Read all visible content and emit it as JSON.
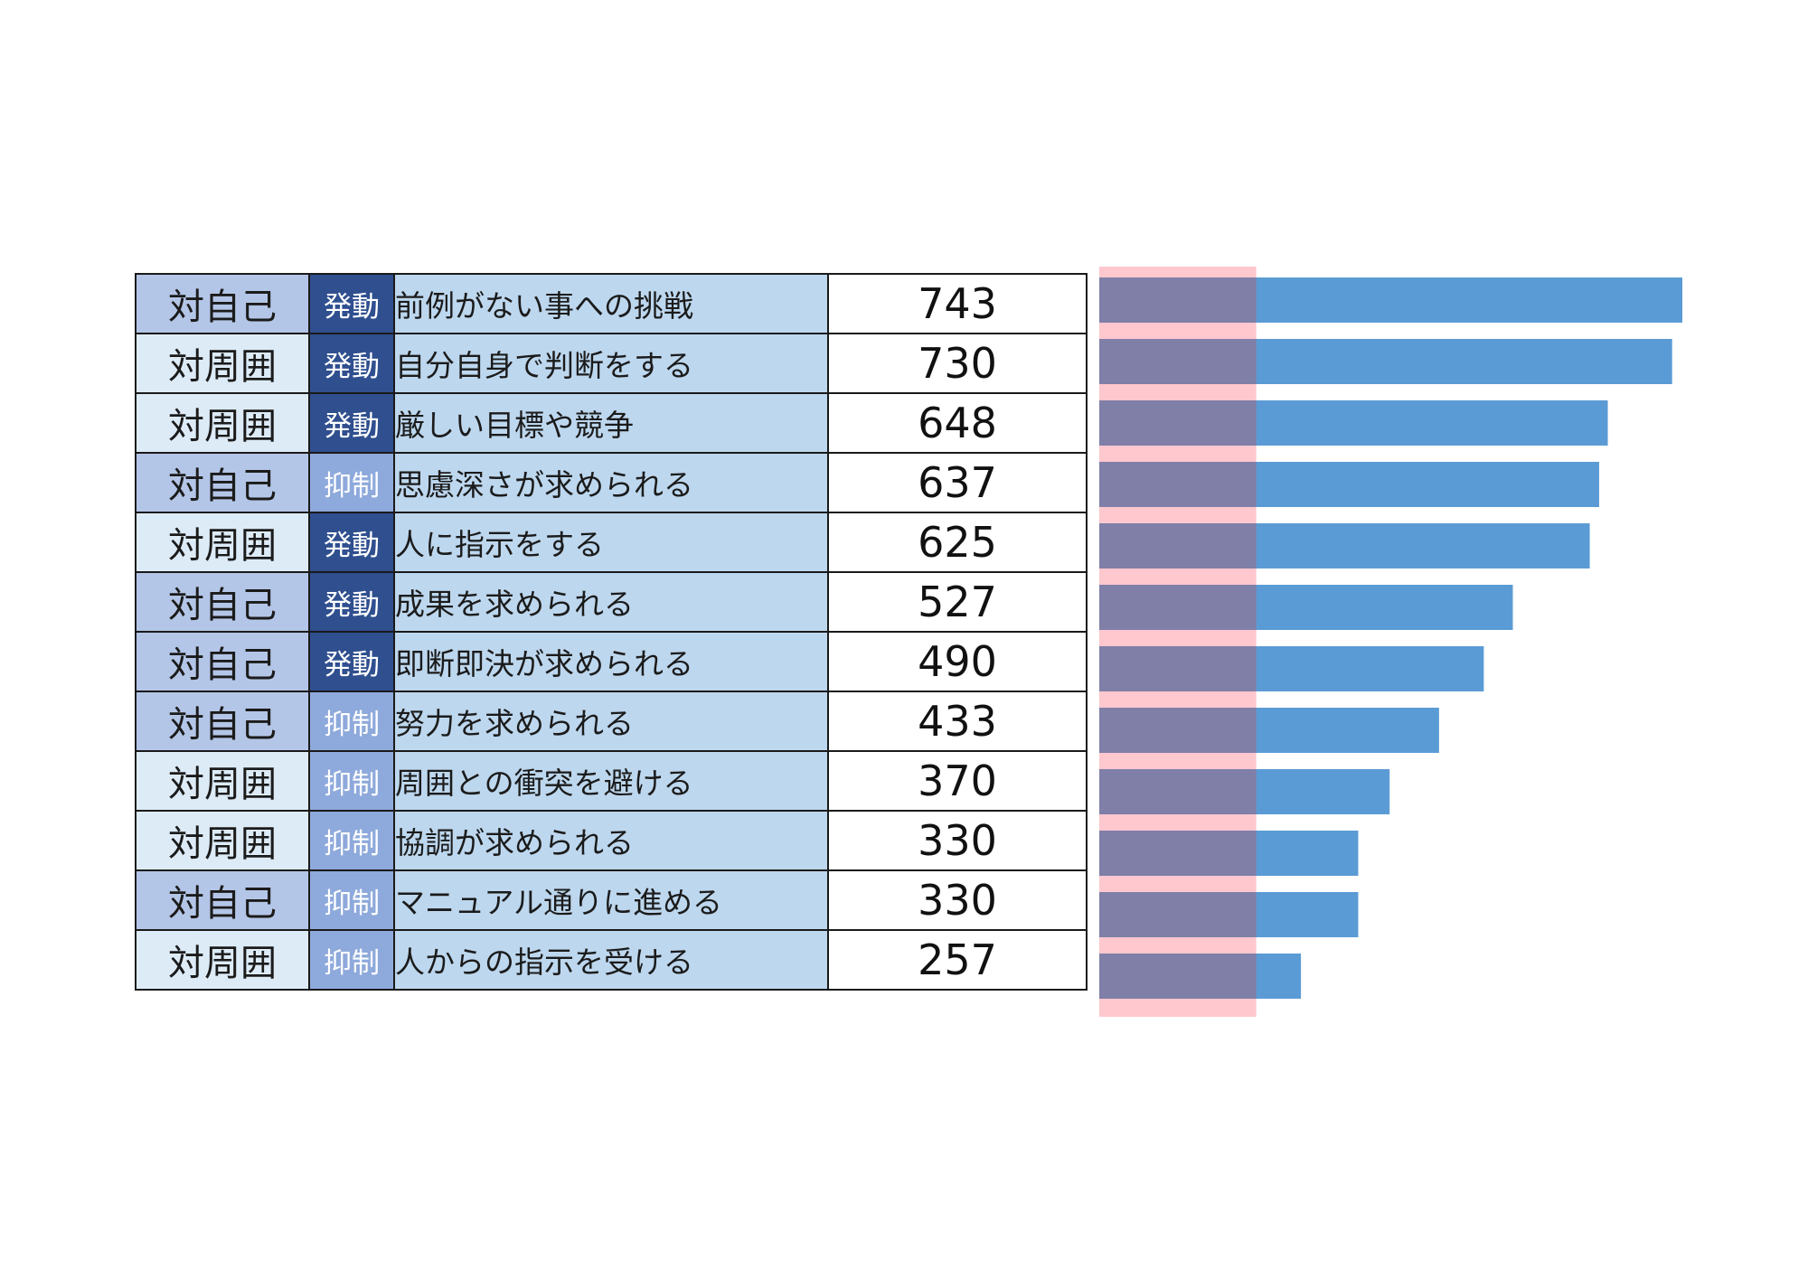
{
  "colors": {
    "scope_self": "#b4c6e7",
    "scope_others": "#ddebf7",
    "type_active": "#2f4f8f",
    "type_restrain": "#8ea9db",
    "label_bg": "#bdd7ee",
    "bar": "#5b9bd5",
    "highlight_band": "#ffc7ce",
    "bar_overlap": "#7f7fa8"
  },
  "rows": [
    {
      "scope": "対自己",
      "type": "発動",
      "label": "前例がない事への挑戦",
      "value": "743"
    },
    {
      "scope": "対周囲",
      "type": "発動",
      "label": "自分自身で判断をする",
      "value": "730"
    },
    {
      "scope": "対周囲",
      "type": "発動",
      "label": "厳しい目標や競争",
      "value": "648"
    },
    {
      "scope": "対自己",
      "type": "抑制",
      "label": "思慮深さが求められる",
      "value": "637"
    },
    {
      "scope": "対周囲",
      "type": "発動",
      "label": "人に指示をする",
      "value": "625"
    },
    {
      "scope": "対自己",
      "type": "発動",
      "label": "成果を求められる",
      "value": "527"
    },
    {
      "scope": "対自己",
      "type": "発動",
      "label": "即断即決が求められる",
      "value": "490"
    },
    {
      "scope": "対自己",
      "type": "抑制",
      "label": "努力を求められる",
      "value": "433"
    },
    {
      "scope": "対周囲",
      "type": "抑制",
      "label": "周囲との衝突を避ける",
      "value": "370"
    },
    {
      "scope": "対周囲",
      "type": "抑制",
      "label": "協調が求められる",
      "value": "330"
    },
    {
      "scope": "対自己",
      "type": "抑制",
      "label": "マニュアル通りに進める",
      "value": "330"
    },
    {
      "scope": "対周囲",
      "type": "抑制",
      "label": "人からの指示を受ける",
      "value": "257"
    }
  ],
  "chart_data": {
    "type": "bar",
    "orientation": "horizontal",
    "categories": [
      "前例がない事への挑戦",
      "自分自身で判断をする",
      "厳しい目標や競争",
      "思慮深さが求められる",
      "人に指示をする",
      "成果を求められる",
      "即断即決が求められる",
      "努力を求められる",
      "周囲との衝突を避ける",
      "協調が求められる",
      "マニュアル通りに進める",
      "人からの指示を受ける"
    ],
    "values": [
      743,
      730,
      648,
      637,
      625,
      527,
      490,
      433,
      370,
      330,
      330,
      257
    ],
    "xlim": [
      0,
      743
    ],
    "highlight_band_range": [
      0,
      200
    ],
    "grid": false,
    "legend": "none"
  }
}
